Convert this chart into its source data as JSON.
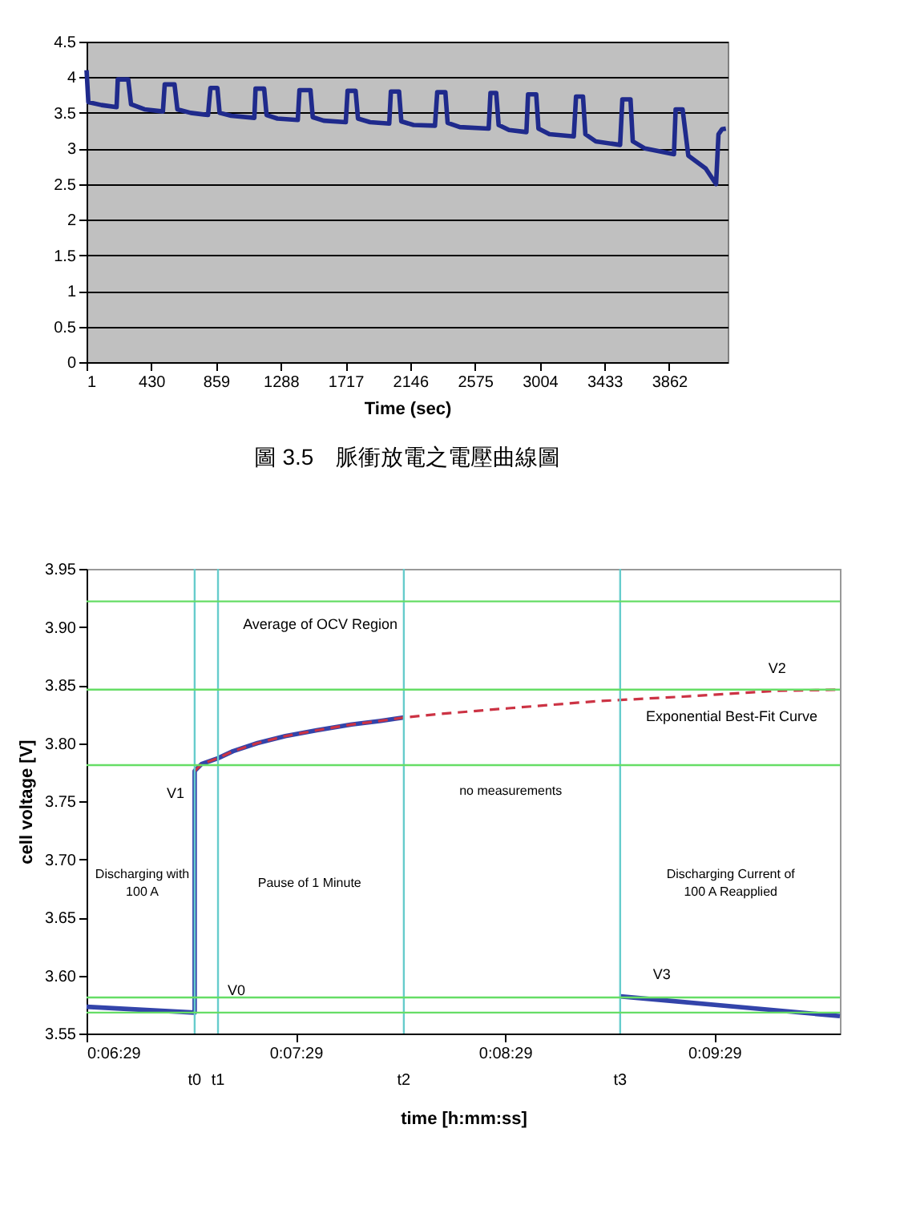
{
  "chart_data": [
    {
      "type": "line",
      "xlabel": "Time (sec)",
      "xlim": [
        1,
        4250
      ],
      "xticks": [
        1,
        430,
        859,
        1288,
        1717,
        2146,
        2575,
        3004,
        3433,
        3862
      ],
      "ylim": [
        0,
        4.5
      ],
      "yticks": [
        0,
        0.5,
        1,
        1.5,
        2,
        2.5,
        3,
        3.5,
        4,
        4.5
      ],
      "grid": "y",
      "annotations": [
        "圖 3.5　脈衝放電之電壓曲線圖"
      ],
      "series": [
        {
          "color": "#1f2a8c",
          "x": [
            1,
            13,
            100,
            200,
            208,
            277,
            296,
            385,
            507,
            519,
            584,
            603,
            691,
            806,
            822,
            868,
            883,
            960,
            1113,
            1121,
            1178,
            1194,
            1266,
            1401,
            1412,
            1485,
            1500,
            1573,
            1719,
            1731,
            1784,
            1800,
            1880,
            2007,
            2018,
            2072,
            2087,
            2168,
            2310,
            2325,
            2379,
            2394,
            2475,
            2666,
            2678,
            2716,
            2732,
            2801,
            2916,
            2927,
            2981,
            2996,
            3069,
            3230,
            3245,
            3291,
            3307,
            3376,
            3537,
            3552,
            3606,
            3621,
            3702,
            3894,
            3905,
            3951,
            3989,
            4104,
            4173,
            4189,
            4212,
            4238
          ],
          "values": [
            4.1,
            3.65,
            3.61,
            3.58,
            3.97,
            3.97,
            3.62,
            3.55,
            3.52,
            3.9,
            3.9,
            3.55,
            3.5,
            3.47,
            3.85,
            3.85,
            3.5,
            3.46,
            3.43,
            3.84,
            3.84,
            3.47,
            3.42,
            3.4,
            3.82,
            3.82,
            3.44,
            3.39,
            3.37,
            3.81,
            3.81,
            3.42,
            3.37,
            3.35,
            3.8,
            3.8,
            3.38,
            3.33,
            3.32,
            3.79,
            3.79,
            3.36,
            3.3,
            3.28,
            3.78,
            3.78,
            3.33,
            3.26,
            3.23,
            3.76,
            3.76,
            3.28,
            3.2,
            3.17,
            3.73,
            3.73,
            3.2,
            3.1,
            3.05,
            3.69,
            3.69,
            3.1,
            3.0,
            2.92,
            3.55,
            3.55,
            2.9,
            2.72,
            2.5,
            3.2,
            3.27,
            3.28
          ]
        }
      ]
    },
    {
      "type": "line",
      "xlabel": "time [h:mm:ss]",
      "ylabel": "cell voltage [V]",
      "xlim": [
        0.10806,
        0.16806
      ],
      "xticks": [
        {
          "value": 0.10806,
          "label": "0:06:29"
        },
        {
          "value": 0.12472,
          "label": "0:07:29"
        },
        {
          "value": 0.14139,
          "label": "0:08:29"
        },
        {
          "value": 0.15806,
          "label": "0:09:29"
        }
      ],
      "ylim": [
        3.55,
        3.95
      ],
      "yticks": [
        {
          "value": 3.55,
          "label": "3.55"
        },
        {
          "value": 3.6,
          "label": "3.60"
        },
        {
          "value": 3.65,
          "label": "3.65"
        },
        {
          "value": 3.7,
          "label": "3.70"
        },
        {
          "value": 3.75,
          "label": "3.75"
        },
        {
          "value": 3.8,
          "label": "3.80"
        },
        {
          "value": 3.85,
          "label": "3.85"
        },
        {
          "value": 3.9,
          "label": "3.90"
        },
        {
          "value": 3.95,
          "label": "3.95"
        }
      ],
      "grid": false,
      "ref_lines": [
        {
          "axis": "x",
          "value": 0.11667,
          "label": "t0",
          "color": "#66cccc"
        },
        {
          "axis": "x",
          "value": 0.11853,
          "label": "t1",
          "color": "#66cccc"
        },
        {
          "axis": "x",
          "value": 0.13333,
          "label": "t2",
          "color": "#66cccc"
        },
        {
          "axis": "x",
          "value": 0.15056,
          "label": "t3",
          "color": "#66cccc"
        },
        {
          "axis": "y",
          "value": 3.922,
          "color": "#66dd66"
        },
        {
          "axis": "y",
          "value": 3.846,
          "color": "#66dd66"
        },
        {
          "axis": "y",
          "value": 3.781,
          "color": "#66dd66"
        },
        {
          "axis": "y",
          "value": 3.581,
          "color": "#66dd66"
        },
        {
          "axis": "y",
          "value": 3.568,
          "color": "#66dd66"
        }
      ],
      "annotations": [
        "Discharging with 100 A",
        "Pause of 1 Minute",
        "Discharging Current of 100 A Reapplied",
        "no measurements",
        {
          "text": "Average of OCV Region",
          "x": 0.12667,
          "y": 3.922
        },
        {
          "text": "V1",
          "x": 0.11667,
          "y": 3.776
        },
        {
          "text": "V0",
          "x": 0.11667,
          "y": 3.568
        },
        {
          "text": "V2",
          "x": 0.16306,
          "y": 3.845
        },
        {
          "text": "V3",
          "x": 0.15056,
          "y": 3.582
        },
        {
          "text": "Exponential Best-Fit Curve",
          "x": 0.15944,
          "y": 3.8425
        }
      ],
      "series": [
        {
          "color": "#3344aa",
          "x": [
            0.10806,
            0.11667,
            0.11667,
            0.11722,
            0.11853,
            0.11972,
            0.12167,
            0.12389,
            0.12639,
            0.12917,
            0.13139,
            0.13333,
            0.14,
            0.15056,
            0.16806
          ],
          "values": [
            3.573,
            3.568,
            3.776,
            3.782,
            3.787,
            3.793,
            3.8,
            3.806,
            3.811,
            3.816,
            3.819,
            3.822,
            null,
            3.582,
            3.565
          ]
        },
        {
          "color": "#cc3344",
          "line_style": "dashed",
          "x": [
            0.11667,
            0.11722,
            0.11853,
            0.11972,
            0.12167,
            0.12389,
            0.12639,
            0.12917,
            0.13139,
            0.13333,
            0.13611,
            0.14167,
            0.14861,
            0.15556,
            0.16306,
            0.16806
          ],
          "values": [
            3.776,
            3.782,
            3.787,
            3.793,
            3.8,
            3.806,
            3.811,
            3.816,
            3.819,
            3.822,
            3.825,
            3.83,
            3.836,
            3.84,
            3.845,
            3.846
          ]
        }
      ]
    }
  ]
}
